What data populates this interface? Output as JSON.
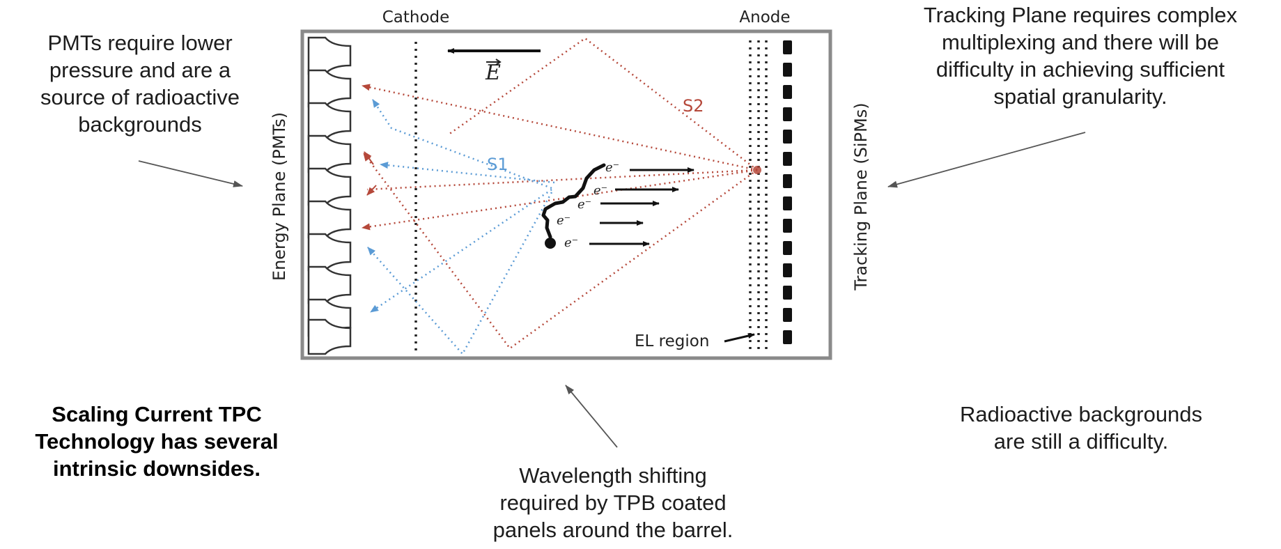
{
  "notes": {
    "pmts": [
      "PMTs require lower",
      "pressure and are a",
      "source of radioactive",
      "backgrounds"
    ],
    "tracking": [
      "Tracking Plane requires complex",
      "multiplexing and there will be",
      "difficulty in achieving sufficient",
      "spatial granularity."
    ],
    "scaling": [
      "Scaling Current TPC",
      "Technology has several",
      "intrinsic downsides."
    ],
    "wavelength": [
      "Wavelength shifting",
      "required by TPB coated",
      "panels around the barrel."
    ],
    "radioactive": [
      "Radioactive backgrounds",
      "are still a difficulty."
    ]
  },
  "diagram": {
    "cathode_label": "Cathode",
    "anode_label": "Anode",
    "energy_plane_label": "Energy Plane (PMTs)",
    "tracking_plane_label": "Tracking Plane (SiPMs)",
    "efield_symbol": "E",
    "s1_label": "S1",
    "s2_label": "S2",
    "electron_label": "e⁻",
    "el_region_label": "EL region"
  },
  "colors": {
    "s1": "#5b9bd5",
    "s2": "#b5483a",
    "frame": "#8a8a8a",
    "arrow": "#555555"
  }
}
